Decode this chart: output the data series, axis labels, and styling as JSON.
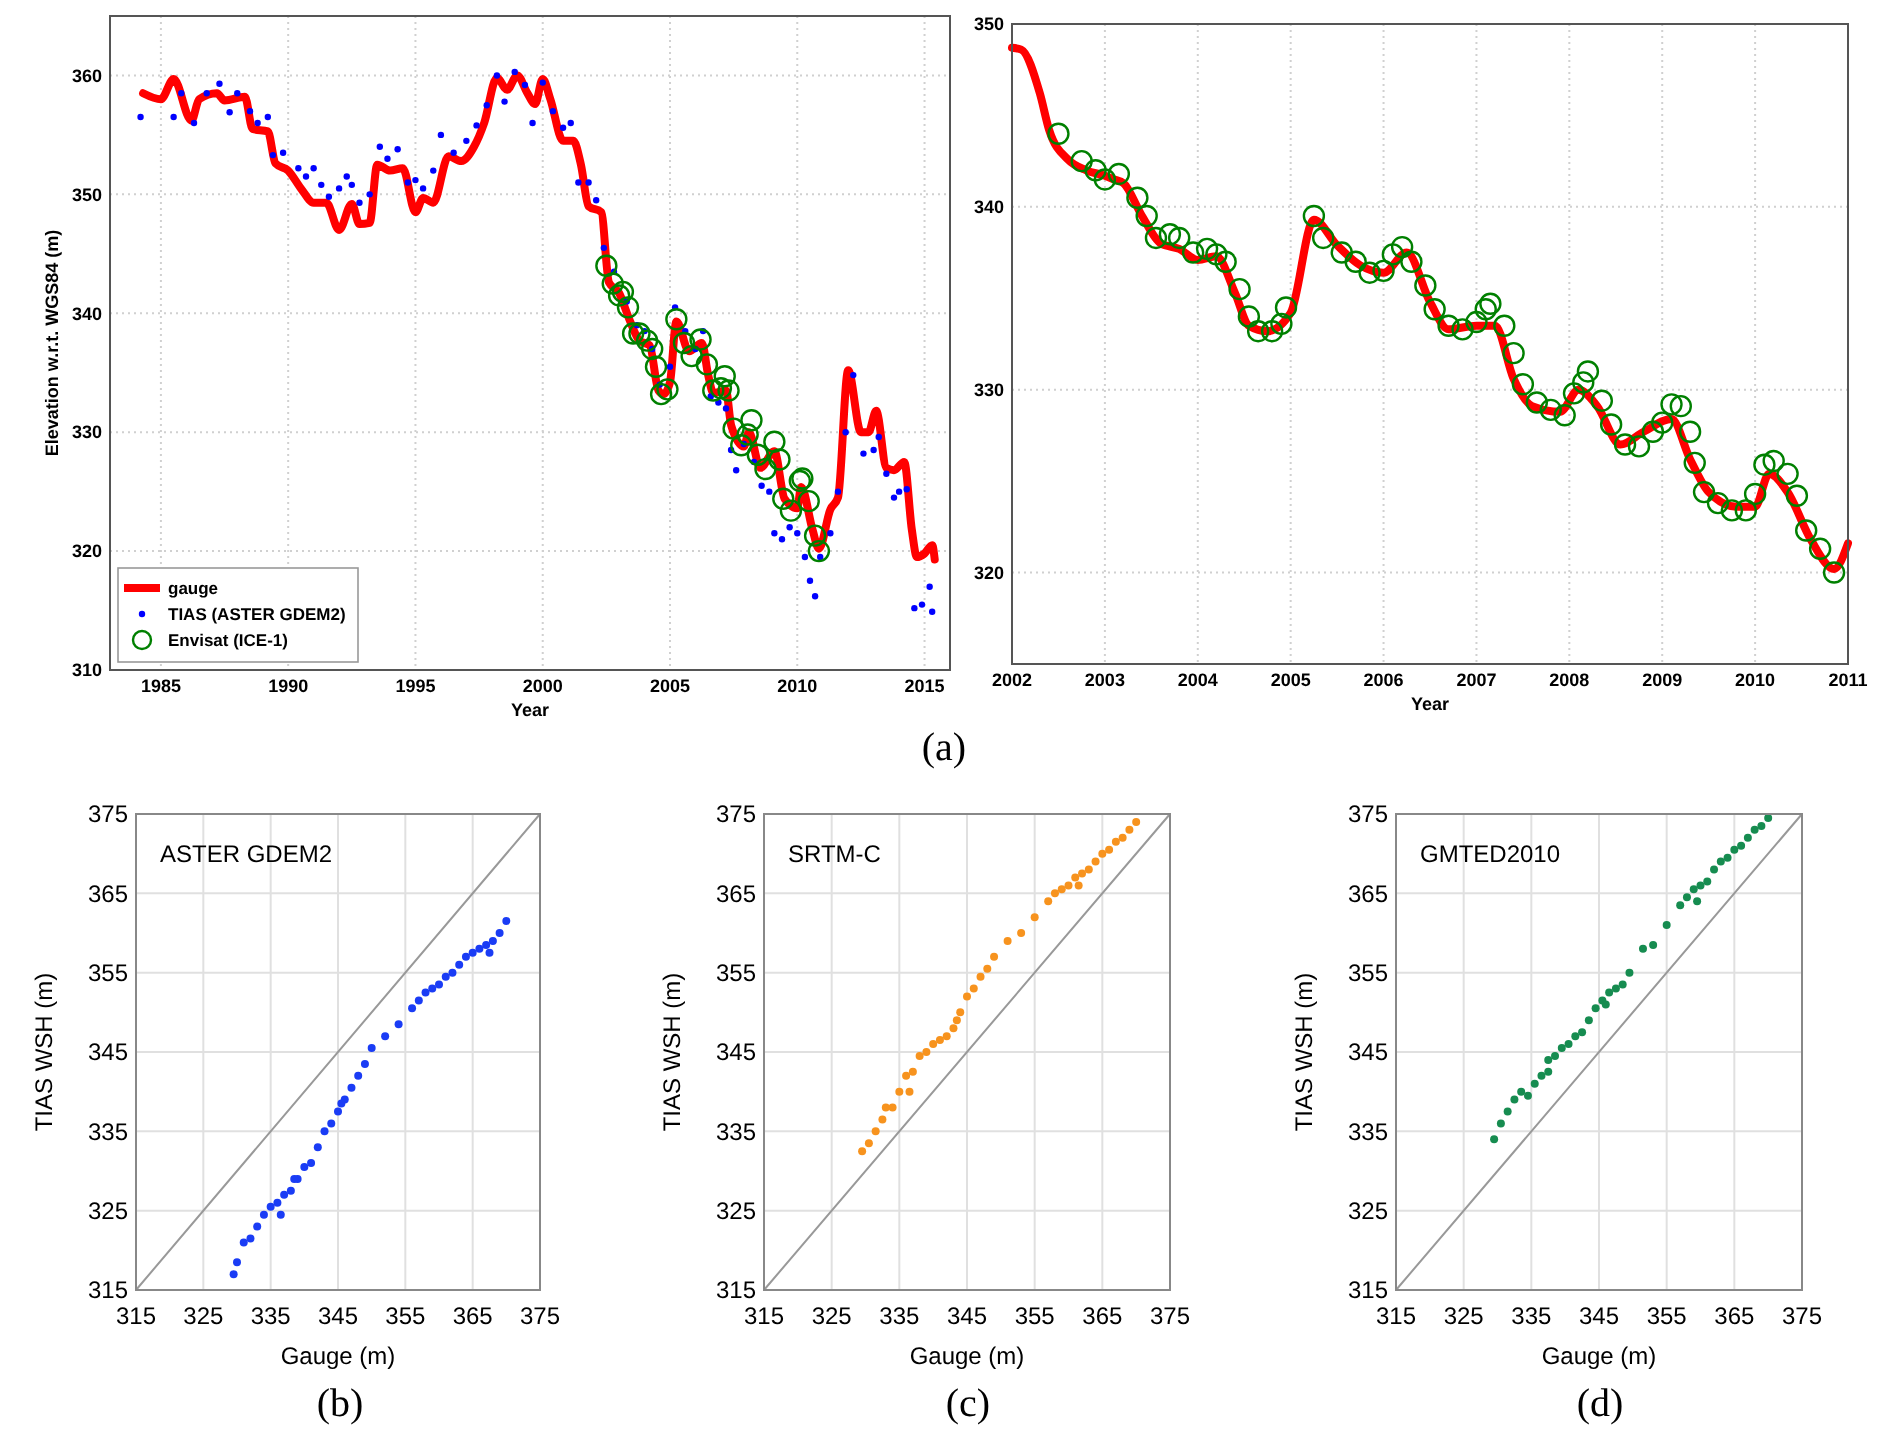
{
  "chart_data": [
    {
      "type": "line",
      "xlabel": "Year",
      "ylabel": "Elevation w.r.t. WGS84 (m)",
      "xlim": [
        1983,
        2016
      ],
      "ylim": [
        310,
        365
      ],
      "xticks": [
        1985,
        1990,
        1995,
        2000,
        2005,
        2010,
        2015
      ],
      "yticks": [
        310,
        320,
        330,
        340,
        350,
        360
      ],
      "grid": true,
      "legend": "bottom left",
      "annotations": [
        "(a)"
      ],
      "series": [
        {
          "name": "gauge",
          "color": "#ff0000",
          "x": [
            1984.3,
            1985.0,
            1985.5,
            1986.2,
            1986.5,
            1987.2,
            1987.5,
            1988.3,
            1988.6,
            1989.2,
            1989.5,
            1990.0,
            1990.5,
            1991.0,
            1991.5,
            1992.0,
            1992.5,
            1992.8,
            1993.2,
            1993.5,
            1994.0,
            1994.5,
            1995.0,
            1995.3,
            1995.7,
            1996.3,
            1996.8,
            1997.3,
            1997.7,
            1998.2,
            1998.6,
            1999.0,
            1999.4,
            1999.7,
            2000.0,
            2000.3,
            2000.8,
            2001.2,
            2001.5,
            2001.8,
            2002.3,
            2002.6,
            2003.0,
            2003.4,
            2003.8,
            2004.2,
            2004.55,
            2004.75,
            2005.0,
            2005.25,
            2005.75,
            2006.25,
            2006.5,
            2006.7,
            2007.2,
            2007.4,
            2007.9,
            2008.1,
            2008.55,
            2009.1,
            2009.5,
            2010.0,
            2010.15,
            2010.6,
            2010.85,
            2011.3,
            2011.6,
            2012.0,
            2012.5,
            2012.8,
            2013.1,
            2013.5,
            2013.8,
            2014.2,
            2014.5,
            2014.7,
            2015.0,
            2015.3,
            2015.4
          ],
          "values": [
            358.5,
            358,
            359.7,
            356.2,
            358,
            358.5,
            357.9,
            358.2,
            355.5,
            355.3,
            352.6,
            352,
            350.5,
            349.3,
            349.3,
            347,
            349.2,
            347.5,
            347.6,
            352.5,
            352,
            352.2,
            348.5,
            349.7,
            349.3,
            353.2,
            352.8,
            354,
            356,
            359.8,
            358.8,
            360,
            358.5,
            357.6,
            359.7,
            358,
            354.5,
            354.5,
            352.5,
            349,
            348.5,
            342.6,
            341.7,
            339.5,
            337.7,
            337.3,
            333.5,
            333.2,
            334.2,
            339.3,
            336.8,
            337.5,
            334.8,
            333.3,
            333.5,
            330.6,
            328.8,
            330,
            327,
            328.4,
            324.4,
            323.6,
            325.4,
            321.8,
            320.2,
            323.5,
            324.5,
            335.2,
            330,
            330,
            331.8,
            327,
            326.8,
            327.5,
            321.8,
            319.5,
            319.8,
            320.5,
            319.3
          ]
        },
        {
          "name": "TIAS (ASTER GDEM2)",
          "type": "scatter",
          "color": "#0000ff",
          "x": [
            1984.2,
            1985.5,
            1985.8,
            1986.3,
            1986.8,
            1987.3,
            1987.7,
            1988.0,
            1988.5,
            1988.8,
            1989.2,
            1989.4,
            1989.8,
            1990.4,
            1990.7,
            1991.0,
            1991.3,
            1991.6,
            1992.0,
            1992.3,
            1992.5,
            1992.8,
            1993.2,
            1993.6,
            1993.9,
            1994.3,
            1994.7,
            1995.0,
            1995.3,
            1995.7,
            1996.0,
            1996.5,
            1997.0,
            1997.4,
            1997.8,
            1998.2,
            1998.5,
            1998.9,
            1999.3,
            1999.6,
            2000.0,
            2000.4,
            2000.8,
            2001.1,
            2001.4,
            2001.8,
            2002.1,
            2002.4,
            2002.8,
            2003.3,
            2003.7,
            2004.0,
            2004.3,
            2004.6,
            2005.0,
            2005.2,
            2005.6,
            2006.0,
            2006.3,
            2006.6,
            2006.9,
            2007.2,
            2007.4,
            2007.6,
            2007.9,
            2008.3,
            2008.6,
            2008.9,
            2009.1,
            2009.4,
            2009.7,
            2010.0,
            2010.3,
            2010.5,
            2010.7,
            2010.9,
            2011.3,
            2011.6,
            2011.9,
            2012.2,
            2012.6,
            2013.0,
            2013.2,
            2013.5,
            2013.8,
            2014.0,
            2014.3,
            2014.6,
            2014.9,
            2015.2,
            2015.3
          ],
          "values": [
            356.5,
            356.5,
            358.5,
            356,
            358.5,
            359.3,
            356.9,
            358.5,
            357,
            356,
            356.5,
            353.3,
            353.5,
            352.2,
            351.5,
            352.2,
            350.8,
            349.8,
            350.5,
            351.5,
            350.8,
            349.3,
            350,
            354,
            353,
            353.8,
            351,
            351.2,
            350.5,
            352,
            355,
            353.5,
            354.5,
            355.8,
            357.5,
            360,
            357.8,
            360.3,
            359.2,
            356,
            359.4,
            357,
            355.6,
            356,
            351,
            351,
            349.5,
            345.5,
            343.5,
            341,
            339,
            338.5,
            337,
            334,
            335.5,
            340.5,
            338.5,
            337,
            338.5,
            333,
            332.5,
            332,
            328.5,
            326.8,
            329,
            327.5,
            325.5,
            325,
            321.5,
            321,
            322,
            321.5,
            319.5,
            317.5,
            316.2,
            319.5,
            321.5,
            325,
            330,
            334.8,
            328.2,
            328.5,
            329.6,
            326.5,
            324.5,
            325,
            325.2,
            315.2,
            315.5,
            317,
            314.9
          ]
        },
        {
          "name": "Envisat (ICE-1)",
          "type": "scatter",
          "color": "#008000",
          "marker": "circle",
          "x": [
            2002.5,
            2002.75,
            2003.0,
            2003.15,
            2003.35,
            2003.55,
            2003.8,
            2004.1,
            2004.3,
            2004.45,
            2004.65,
            2004.9,
            2005.25,
            2005.55,
            2005.85,
            2006.2,
            2006.45,
            2006.7,
            2007.0,
            2007.15,
            2007.3,
            2007.5,
            2007.8,
            2008.05,
            2008.2,
            2008.45,
            2008.75,
            2009.1,
            2009.3,
            2009.45,
            2009.75,
            2010.1,
            2010.2,
            2010.45,
            2010.7,
            2010.85
          ],
          "values": [
            344,
            342.5,
            341.5,
            341.8,
            340.5,
            338.3,
            338.3,
            337.7,
            337,
            335.5,
            333.2,
            333.6,
            339.5,
            337.5,
            336.4,
            337.8,
            335.7,
            333.5,
            333.7,
            334.7,
            333.5,
            330.3,
            328.9,
            329.8,
            331,
            328.1,
            326.9,
            329.2,
            327.7,
            324.4,
            323.4,
            325.9,
            326.1,
            324.2,
            321.3,
            320
          ]
        }
      ]
    },
    {
      "type": "line",
      "xlabel": "Year",
      "xlim": [
        2002,
        2011
      ],
      "ylim": [
        315,
        350
      ],
      "xticks": [
        2002,
        2003,
        2004,
        2005,
        2006,
        2007,
        2008,
        2009,
        2010,
        2011
      ],
      "yticks": [
        320,
        330,
        340,
        350
      ],
      "grid": true,
      "series": [
        {
          "color": "#ff0000",
          "x": [
            2002.0,
            2002.1,
            2002.3,
            2002.4,
            2002.6,
            2002.8,
            2003.0,
            2003.1,
            2003.2,
            2003.4,
            2003.6,
            2003.8,
            2004.0,
            2004.2,
            2004.4,
            2004.55,
            2004.75,
            2005.0,
            2005.25,
            2005.5,
            2005.75,
            2006.0,
            2006.25,
            2006.5,
            2006.7,
            2007.0,
            2007.2,
            2007.4,
            2007.6,
            2007.9,
            2008.1,
            2008.3,
            2008.55,
            2008.8,
            2009.1,
            2009.3,
            2009.5,
            2009.8,
            2010.0,
            2010.15,
            2010.35,
            2010.6,
            2010.85,
            2011.0
          ],
          "values": [
            348.7,
            348.6,
            346.2,
            344.2,
            342.6,
            342,
            341.7,
            341.5,
            341.3,
            339.5,
            338,
            337.7,
            337.1,
            337.3,
            335.3,
            333.5,
            333.2,
            334.2,
            339.3,
            337.9,
            336.8,
            336.4,
            337.5,
            334.8,
            333.3,
            333.5,
            333.5,
            330.6,
            329.1,
            328.8,
            330,
            329.1,
            327,
            327.7,
            328.4,
            326.2,
            324.4,
            323.6,
            323.6,
            325.4,
            324.4,
            321.8,
            320.2,
            321.6
          ]
        },
        {
          "type": "scatter",
          "color": "#008000",
          "marker": "circle",
          "x": [
            2002.5,
            2002.75,
            2002.9,
            2003.0,
            2003.15,
            2003.35,
            2003.45,
            2003.55,
            2003.7,
            2003.8,
            2003.95,
            2004.1,
            2004.2,
            2004.3,
            2004.45,
            2004.55,
            2004.65,
            2004.8,
            2004.9,
            2004.95,
            2005.25,
            2005.35,
            2005.55,
            2005.7,
            2005.85,
            2006.0,
            2006.1,
            2006.2,
            2006.3,
            2006.45,
            2006.55,
            2006.7,
            2006.85,
            2007.0,
            2007.1,
            2007.15,
            2007.3,
            2007.4,
            2007.5,
            2007.65,
            2007.8,
            2007.95,
            2008.05,
            2008.15,
            2008.2,
            2008.35,
            2008.45,
            2008.6,
            2008.75,
            2008.9,
            2009.0,
            2009.1,
            2009.2,
            2009.3,
            2009.35,
            2009.45,
            2009.6,
            2009.75,
            2009.9,
            2010.0,
            2010.1,
            2010.2,
            2010.35,
            2010.45,
            2010.55,
            2010.7,
            2010.85
          ],
          "values": [
            344,
            342.5,
            342,
            341.5,
            341.8,
            340.5,
            339.5,
            338.3,
            338.5,
            338.3,
            337.5,
            337.7,
            337.4,
            337,
            335.5,
            334,
            333.2,
            333.2,
            333.6,
            334.5,
            339.5,
            338.3,
            337.5,
            337,
            336.4,
            336.5,
            337.4,
            337.8,
            337,
            335.7,
            334.4,
            333.5,
            333.3,
            333.7,
            334.4,
            334.7,
            333.5,
            332,
            330.3,
            329.3,
            328.9,
            328.6,
            329.8,
            330.4,
            331,
            329.4,
            328.1,
            327,
            326.9,
            327.7,
            328.2,
            329.2,
            329.1,
            327.7,
            326,
            324.4,
            323.8,
            323.4,
            323.4,
            324.3,
            325.9,
            326.1,
            325.4,
            324.2,
            322.3,
            321.3,
            320
          ]
        }
      ]
    },
    {
      "type": "scatter",
      "title": "ASTER GDEM2",
      "xlabel": "Gauge (m)",
      "ylabel": "TIAS WSH (m)",
      "xlim": [
        315,
        375
      ],
      "ylim": [
        315,
        375
      ],
      "xticks": [
        315,
        325,
        335,
        345,
        355,
        365,
        375
      ],
      "yticks": [
        315,
        325,
        335,
        345,
        355,
        365,
        375
      ],
      "grid": true,
      "annotations": [
        "(b)"
      ],
      "series": [
        {
          "type": "line",
          "color": "#999999",
          "x": [
            315,
            375
          ],
          "values": [
            315,
            375
          ]
        },
        {
          "color": "#1a3cf5",
          "x": [
            329.5,
            330,
            331,
            332,
            333,
            334,
            335,
            336,
            337,
            338,
            339,
            340,
            341,
            342,
            343,
            344,
            345,
            346,
            347,
            348,
            349,
            350,
            352,
            354,
            356,
            358,
            359,
            360,
            362,
            363,
            364,
            365,
            366,
            367,
            368,
            369,
            370,
            336.5,
            338.5,
            345.5,
            357,
            361,
            367.5
          ],
          "values": [
            317,
            318.5,
            321,
            321.5,
            323,
            324.5,
            325.5,
            326,
            327,
            327.5,
            329,
            330.5,
            331,
            333,
            335,
            336,
            337.5,
            339,
            340.5,
            342,
            343.5,
            345.5,
            347,
            348.5,
            350.5,
            352.5,
            353,
            353.5,
            355,
            356,
            357,
            357.5,
            358,
            358.5,
            359,
            360,
            361.5,
            324.5,
            329,
            338.5,
            351.5,
            354.5,
            357.5
          ]
        }
      ]
    },
    {
      "type": "scatter",
      "title": "SRTM-C",
      "xlabel": "Gauge (m)",
      "ylabel": "TIAS WSH (m)",
      "xlim": [
        315,
        375
      ],
      "ylim": [
        315,
        375
      ],
      "xticks": [
        315,
        325,
        335,
        345,
        355,
        365,
        375
      ],
      "yticks": [
        315,
        325,
        335,
        345,
        355,
        365,
        375
      ],
      "grid": true,
      "annotations": [
        "(c)"
      ],
      "series": [
        {
          "type": "line",
          "color": "#999999",
          "x": [
            315,
            375
          ],
          "values": [
            315,
            375
          ]
        },
        {
          "color": "#f7931e",
          "x": [
            329.5,
            330.5,
            331.5,
            332.5,
            333,
            334,
            335,
            336,
            337,
            338,
            339,
            340,
            341,
            342,
            343,
            344,
            345,
            346,
            347,
            348,
            349,
            351,
            353,
            355,
            357,
            358,
            359,
            360,
            361,
            362,
            363,
            364,
            365,
            366,
            367,
            368,
            369,
            370,
            336.5,
            343.5,
            361.5
          ],
          "values": [
            332.5,
            333.5,
            335,
            336.5,
            338,
            338,
            340,
            342,
            342.5,
            344.5,
            345,
            346,
            346.5,
            347,
            348,
            350,
            352,
            353,
            354.5,
            355.5,
            357,
            359,
            360,
            362,
            364,
            365,
            365.5,
            366,
            367,
            367.5,
            368,
            369,
            370,
            370.5,
            371.5,
            372,
            373,
            374,
            340,
            349,
            366
          ]
        }
      ]
    },
    {
      "type": "scatter",
      "title": "GMTED2010",
      "xlabel": "Gauge (m)",
      "ylabel": "TIAS WSH (m)",
      "xlim": [
        315,
        375
      ],
      "ylim": [
        315,
        375
      ],
      "xticks": [
        315,
        325,
        335,
        345,
        355,
        365,
        375
      ],
      "yticks": [
        315,
        325,
        335,
        345,
        355,
        365,
        375
      ],
      "grid": true,
      "annotations": [
        "(d)"
      ],
      "series": [
        {
          "type": "line",
          "color": "#999999",
          "x": [
            315,
            375
          ],
          "values": [
            315,
            375
          ]
        },
        {
          "color": "#168c50",
          "x": [
            329.5,
            330.5,
            331.5,
            332.5,
            333.5,
            334.5,
            335.5,
            336.5,
            337.5,
            338.5,
            339.5,
            340.5,
            341.5,
            342.5,
            343.5,
            344.5,
            345.5,
            346.5,
            347.5,
            348.5,
            349.5,
            351.5,
            353,
            355,
            357,
            358,
            359,
            360,
            361,
            362,
            363,
            364,
            365,
            366,
            367,
            368,
            369,
            370,
            337.5,
            346,
            359.5
          ],
          "values": [
            334,
            336,
            337.5,
            339,
            340,
            339.5,
            341,
            342,
            344,
            344.5,
            345.5,
            346,
            347,
            347.5,
            349,
            350.5,
            351.5,
            352.5,
            353,
            353.5,
            355,
            358,
            358.5,
            361,
            363.5,
            364.5,
            365.5,
            366,
            366.5,
            368,
            369,
            369.5,
            370.5,
            371,
            372,
            373,
            373.5,
            374.5,
            342.5,
            351,
            364
          ]
        }
      ]
    }
  ]
}
